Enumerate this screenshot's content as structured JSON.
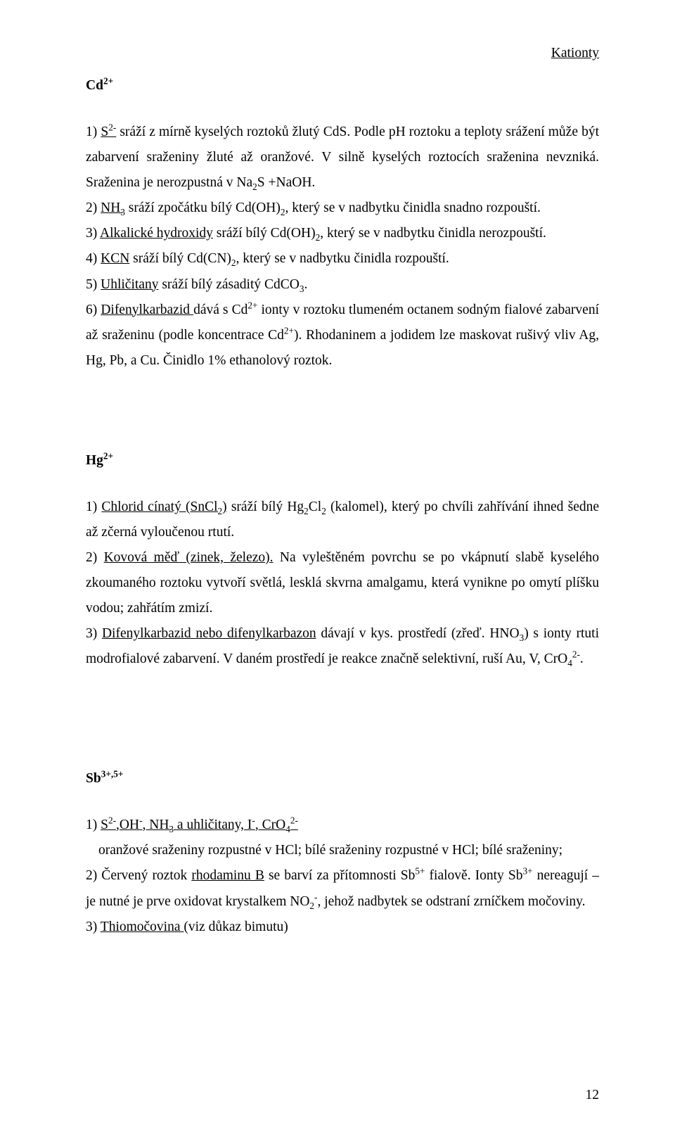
{
  "header_right": "Kationty",
  "page_number": "12",
  "cd": {
    "title_base": "Cd",
    "title_sup": "2+",
    "p1a": "1) ",
    "p1b": "S",
    "p1b_sup": "2-",
    "p1c": " sráží z mírně kyselých roztoků žlutý CdS. Podle pH roztoku a teploty srážení může být zabarvení sraženiny žluté až oranžové. V silně kyselých roztocích sraženina nevzniká. Sraženina je nerozpustná v Na",
    "p1d_sub": "2",
    "p1e": "S +NaOH.",
    "p2a": "2) ",
    "p2b": "NH",
    "p2b_sub": "3",
    "p2c": " sráží zpočátku bílý Cd(OH)",
    "p2d_sub": "2",
    "p2e": ", který se v nadbytku činidla snadno rozpouští.",
    "p3a": "3) ",
    "p3b": "Alkalické hydroxidy",
    "p3c": " sráží bílý Cd(OH)",
    "p3d_sub": "2",
    "p3e": ", který se v nadbytku činidla nerozpouští.",
    "p4a": "4) ",
    "p4b": "KCN",
    "p4c": " sráží bílý Cd(CN)",
    "p4d_sub": "2",
    "p4e": ", který se v nadbytku činidla rozpouští.",
    "p5a": "5) ",
    "p5b": "Uhličitany",
    "p5c": " sráží bílý zásaditý CdCO",
    "p5d_sub": "3",
    "p5e": ".",
    "p6a": "6) ",
    "p6b": "Difenylkarbazid ",
    "p6c": "dává s Cd",
    "p6d_sup": "2+",
    "p6e": " ionty v roztoku tlumeném octanem sodným fialové zabarvení až sraženinu (podle koncentrace Cd",
    "p6f_sup": "2+",
    "p6g": "). Rhodaninem a jodidem lze maskovat rušivý vliv Ag, Hg, Pb, a Cu. Činidlo 1% ethanolový roztok."
  },
  "hg": {
    "title_base": "Hg",
    "title_sup": "2+",
    "p1a": "1) ",
    "p1b": "Chlorid cínatý (SnCl",
    "p1b_sub": "2",
    "p1b2": ")",
    "p1c": " sráží bílý Hg",
    "p1d_sub": "2",
    "p1e": "Cl",
    "p1f_sub": "2",
    "p1g": " (kalomel), který po chvíli zahřívání ihned šedne až zčerná vyloučenou rtutí.",
    "p2a": "2) ",
    "p2b": "Kovová měď (zinek, železo).",
    "p2c": " Na vyleštěném povrchu se po vkápnutí slabě kyselého zkoumaného roztoku vytvoří světlá, lesklá skvrna amalgamu, která vynikne po omytí plíšku vodou; zahřátím zmizí.",
    "p3a": "3) ",
    "p3b": "Difenylkarbazid nebo difenylkarbazon",
    "p3c": " dávají v kys. prostředí (zřeď. HNO",
    "p3d_sub": "3",
    "p3e": ") s ionty rtuti modrofialové zabarvení. V daném prostředí je reakce značně selektivní, ruší Au, V, CrO",
    "p3f_sub": "4",
    "p3g_sup": "2-",
    "p3h": "."
  },
  "sb": {
    "title_base": "Sb",
    "title_sup": "3+,5+",
    "p1a": "1) ",
    "p1b": "S",
    "p1b_sup": "2-",
    "p1c": ",OH",
    "p1c_sup": "-",
    "p1d": ", NH",
    "p1d_sub": "3",
    "p1e": " a uhličitany, I",
    "p1e_sup": "-",
    "p1f": ", CrO",
    "p1f_sub": "4",
    "p1g_sup": "2-",
    "p1line2": "oranžové sraženiny rozpustné v HCl; bílé sraženiny rozpustné v HCl; bílé sraženiny;",
    "p2a": "2) Červený roztok ",
    "p2b": "rhodaminu B",
    "p2c": " se barví za přítomnosti Sb",
    "p2d_sup": "5+",
    "p2e": " fialově. Ionty Sb",
    "p2f_sup": "3+",
    "p2g": " nereagují – je nutné je prve oxidovat krystalkem NO",
    "p2h_sub": "2",
    "p2i_sup": "-",
    "p2j": ", jehož nadbytek se odstraní zrníčkem močoviny.",
    "p3a": "3) ",
    "p3b": "Thiomočovina ",
    "p3c": "(viz důkaz bimutu)"
  }
}
